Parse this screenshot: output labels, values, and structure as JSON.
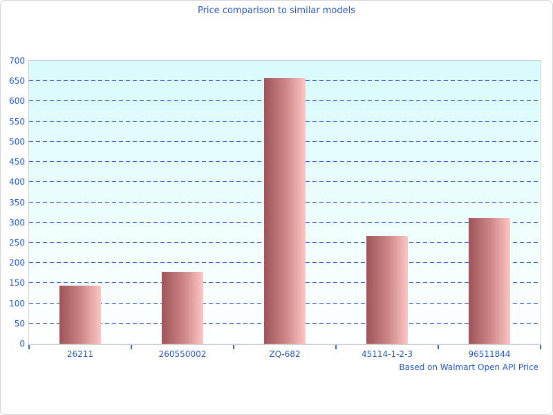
{
  "title": "Price comparison to similar models",
  "footer": "Based on Walmart Open API Price",
  "colors": {
    "text_blue": "#2457c4",
    "grid_blue": "#3865cd",
    "axis_gray": "#d0d0d0",
    "frame_border": "#d3d3d3",
    "bar_dark": "#9d555a",
    "bar_mid": "#ca8282",
    "bar_light": "#fcc6c4",
    "plot_bg_top": "#d8fafb",
    "plot_bg_mid": "#edfdfd",
    "plot_bg_bottom": "#ffffff"
  },
  "chart_data": {
    "type": "bar",
    "title": "Price comparison to similar models",
    "categories": [
      "26211",
      "260550002",
      "ZQ-682",
      "45114-1-2-3",
      "96511844"
    ],
    "values": [
      144,
      178,
      658,
      267,
      311
    ],
    "xlabel": "",
    "ylabel": "",
    "ylim": [
      0,
      700
    ],
    "ytick_step": 50,
    "grid": "horizontal-dashed",
    "legend": "none",
    "annotation": "Based on Walmart Open API Price"
  }
}
